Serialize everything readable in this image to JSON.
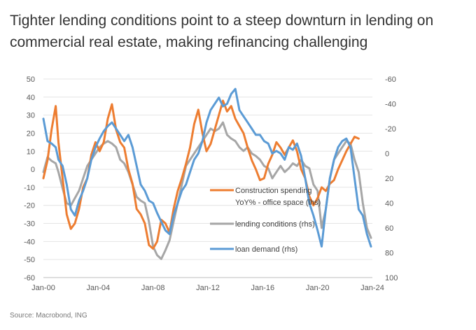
{
  "title_lines": [
    "Tighter lending conditions point to a steep downturn in lending on",
    "commercial real estate, making refinancing challenging"
  ],
  "source": "Source: Macrobond, ING",
  "chart_data": {
    "type": "line",
    "left_axis": {
      "ylim": [
        -60,
        50
      ],
      "ticks": [
        "50",
        "40",
        "30",
        "20",
        "10",
        "0",
        "-10",
        "-20",
        "-30",
        "-40",
        "-50",
        "-60"
      ],
      "tick_values": [
        50,
        40,
        30,
        20,
        10,
        0,
        -10,
        -20,
        -30,
        -40,
        -50,
        -60
      ]
    },
    "right_axis": {
      "ylim": [
        -60,
        100
      ],
      "inverted": true,
      "ticks": [
        "-60",
        "-40",
        "-20",
        "0",
        "20",
        "40",
        "60",
        "80",
        "100"
      ],
      "tick_values": [
        -60,
        -40,
        -20,
        0,
        20,
        40,
        60,
        80,
        100
      ]
    },
    "x_axis": {
      "xlim": [
        2000,
        2024
      ],
      "ticks": [
        "Jan-00",
        "Jan-04",
        "Jan-08",
        "Jan-12",
        "Jan-16",
        "Jan-20",
        "Jan-24"
      ],
      "tick_values": [
        2000,
        2004,
        2008,
        2012,
        2016,
        2020,
        2024
      ]
    },
    "series": [
      {
        "name": "Construction spending YoY% - office space (lhs)",
        "legend_lines": [
          "Construction spending",
          "YoY% - office space (lhs)"
        ],
        "axis": "left",
        "color": "#ED7D31",
        "x": [
          2000.0,
          2000.3,
          2000.6,
          2000.9,
          2001.1,
          2001.4,
          2001.7,
          2002.0,
          2002.3,
          2002.6,
          2002.9,
          2003.2,
          2003.5,
          2003.8,
          2004.1,
          2004.4,
          2004.7,
          2005.0,
          2005.3,
          2005.6,
          2005.9,
          2006.2,
          2006.5,
          2006.8,
          2007.1,
          2007.4,
          2007.7,
          2008.0,
          2008.3,
          2008.6,
          2008.9,
          2009.2,
          2009.5,
          2009.8,
          2010.1,
          2010.4,
          2010.7,
          2011.0,
          2011.3,
          2011.6,
          2011.9,
          2012.2,
          2012.5,
          2012.8,
          2013.1,
          2013.4,
          2013.7,
          2014.0,
          2014.3,
          2014.6,
          2014.9,
          2015.2,
          2015.5,
          2015.8,
          2016.1,
          2016.4,
          2016.7,
          2017.0,
          2017.3,
          2017.6,
          2017.9,
          2018.2,
          2018.5,
          2018.8,
          2019.1,
          2019.4,
          2019.7,
          2020.0,
          2020.3,
          2020.6,
          2020.9,
          2021.2,
          2021.5,
          2021.8,
          2022.1,
          2022.4,
          2022.7,
          2023.0
        ],
        "values": [
          -5,
          5,
          22,
          35,
          15,
          -5,
          -25,
          -33,
          -30,
          -22,
          -10,
          -5,
          8,
          15,
          10,
          15,
          28,
          36,
          22,
          15,
          12,
          0,
          -8,
          -22,
          -25,
          -30,
          -42,
          -44,
          -40,
          -28,
          -30,
          -35,
          -22,
          -12,
          -5,
          3,
          12,
          25,
          33,
          20,
          10,
          14,
          22,
          30,
          38,
          32,
          35,
          28,
          24,
          20,
          12,
          5,
          0,
          -6,
          -5,
          3,
          8,
          15,
          12,
          8,
          12,
          16,
          10,
          0,
          -5,
          -15,
          -20,
          -16,
          -10,
          -12,
          -8,
          -6,
          0,
          5,
          10,
          14,
          18,
          17
        ]
      },
      {
        "name": "lending conditions (rhs)",
        "legend_lines": [
          "lending conditions (rhs)"
        ],
        "axis": "right",
        "color": "#A6A6A6",
        "x": [
          2000.0,
          2000.3,
          2000.6,
          2000.9,
          2001.1,
          2001.4,
          2001.7,
          2002.0,
          2002.3,
          2002.6,
          2002.9,
          2003.2,
          2003.5,
          2003.8,
          2004.1,
          2004.4,
          2004.7,
          2005.0,
          2005.3,
          2005.6,
          2005.9,
          2006.2,
          2006.5,
          2006.8,
          2007.1,
          2007.4,
          2007.7,
          2008.0,
          2008.3,
          2008.6,
          2008.9,
          2009.2,
          2009.5,
          2009.8,
          2010.1,
          2010.4,
          2010.7,
          2011.0,
          2011.3,
          2011.6,
          2011.9,
          2012.2,
          2012.5,
          2012.8,
          2013.1,
          2013.4,
          2013.7,
          2014.0,
          2014.3,
          2014.6,
          2014.9,
          2015.2,
          2015.5,
          2015.8,
          2016.1,
          2016.4,
          2016.7,
          2017.0,
          2017.3,
          2017.6,
          2017.9,
          2018.2,
          2018.5,
          2018.8,
          2019.1,
          2019.4,
          2019.7,
          2020.0,
          2020.3,
          2020.6,
          2020.9,
          2021.2,
          2021.5,
          2021.8,
          2022.1,
          2022.4,
          2022.7,
          2023.0,
          2023.3,
          2023.6,
          2023.9
        ],
        "values": [
          15,
          3,
          6,
          8,
          15,
          28,
          40,
          42,
          36,
          30,
          20,
          10,
          5,
          0,
          -5,
          -8,
          -10,
          -8,
          -5,
          5,
          8,
          15,
          25,
          35,
          38,
          40,
          55,
          75,
          82,
          85,
          78,
          70,
          55,
          40,
          25,
          10,
          5,
          0,
          -5,
          -10,
          -15,
          -20,
          -18,
          -20,
          -25,
          -15,
          -12,
          -10,
          -5,
          -2,
          -5,
          0,
          2,
          5,
          10,
          12,
          20,
          15,
          10,
          15,
          12,
          8,
          10,
          5,
          10,
          12,
          25,
          30,
          60,
          45,
          20,
          5,
          0,
          -5,
          -10,
          -8,
          5,
          15,
          40,
          60,
          68
        ]
      },
      {
        "name": "loan demand (rhs)",
        "legend_lines": [
          "loan demand (rhs)"
        ],
        "axis": "right",
        "color": "#5B9BD5",
        "x": [
          2000.0,
          2000.3,
          2000.6,
          2000.9,
          2001.1,
          2001.4,
          2001.7,
          2002.0,
          2002.3,
          2002.6,
          2002.9,
          2003.2,
          2003.5,
          2003.8,
          2004.1,
          2004.4,
          2004.7,
          2005.0,
          2005.3,
          2005.6,
          2005.9,
          2006.2,
          2006.5,
          2006.8,
          2007.1,
          2007.4,
          2007.7,
          2008.0,
          2008.3,
          2008.6,
          2008.9,
          2009.2,
          2009.5,
          2009.8,
          2010.1,
          2010.4,
          2010.7,
          2011.0,
          2011.3,
          2011.6,
          2011.9,
          2012.2,
          2012.5,
          2012.8,
          2013.1,
          2013.4,
          2013.7,
          2014.0,
          2014.3,
          2014.6,
          2014.9,
          2015.2,
          2015.5,
          2015.8,
          2016.1,
          2016.4,
          2016.7,
          2017.0,
          2017.3,
          2017.6,
          2017.9,
          2018.2,
          2018.5,
          2018.8,
          2019.1,
          2019.4,
          2019.7,
          2020.0,
          2020.3,
          2020.6,
          2020.9,
          2021.2,
          2021.5,
          2021.8,
          2022.1,
          2022.4,
          2022.7,
          2023.0,
          2023.3,
          2023.6,
          2023.9
        ],
        "values": [
          -28,
          -10,
          -8,
          -5,
          5,
          10,
          25,
          45,
          50,
          38,
          30,
          20,
          5,
          -5,
          -12,
          -18,
          -22,
          -25,
          -20,
          -15,
          -10,
          -15,
          -5,
          10,
          25,
          30,
          38,
          40,
          48,
          55,
          62,
          65,
          50,
          40,
          30,
          25,
          15,
          5,
          0,
          -10,
          -25,
          -35,
          -40,
          -45,
          -38,
          -40,
          -48,
          -52,
          -35,
          -30,
          -25,
          -20,
          -15,
          -15,
          -10,
          -8,
          0,
          -2,
          0,
          5,
          -5,
          -3,
          -8,
          2,
          20,
          40,
          50,
          62,
          75,
          45,
          20,
          5,
          -5,
          -10,
          -12,
          -5,
          20,
          45,
          50,
          65,
          75
        ]
      }
    ]
  }
}
